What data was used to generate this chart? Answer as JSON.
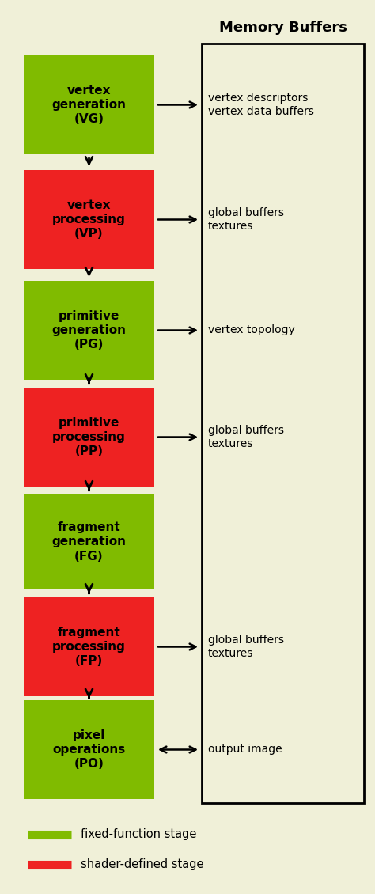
{
  "bg_color": "#f0f0d8",
  "title": "Memory Buffers",
  "title_fontsize": 13,
  "green_color": "#80bb00",
  "red_color": "#ee2222",
  "stages": [
    {
      "label": "vertex\ngeneration\n(VG)",
      "color": "green",
      "arrow_label": "vertex descriptors\nvertex data buffers",
      "bidirectional": false,
      "has_arrow": true
    },
    {
      "label": "vertex\nprocessing\n(VP)",
      "color": "red",
      "arrow_label": "global buffers\ntextures",
      "bidirectional": false,
      "has_arrow": true
    },
    {
      "label": "primitive\ngeneration\n(PG)",
      "color": "green",
      "arrow_label": "vertex topology",
      "bidirectional": false,
      "has_arrow": true
    },
    {
      "label": "primitive\nprocessing\n(PP)",
      "color": "red",
      "arrow_label": "global buffers\ntextures",
      "bidirectional": false,
      "has_arrow": true
    },
    {
      "label": "fragment\ngeneration\n(FG)",
      "color": "green",
      "arrow_label": "",
      "bidirectional": false,
      "has_arrow": false
    },
    {
      "label": "fragment\nprocessing\n(FP)",
      "color": "red",
      "arrow_label": "global buffers\ntextures",
      "bidirectional": false,
      "has_arrow": true
    },
    {
      "label": "pixel\noperations\n(PO)",
      "color": "green",
      "arrow_label": "output image",
      "bidirectional": true,
      "has_arrow": true
    }
  ],
  "legend_items": [
    {
      "color": "#80bb00",
      "label": "fixed-function stage"
    },
    {
      "color": "#ee2222",
      "label": "shader-defined stage"
    }
  ]
}
